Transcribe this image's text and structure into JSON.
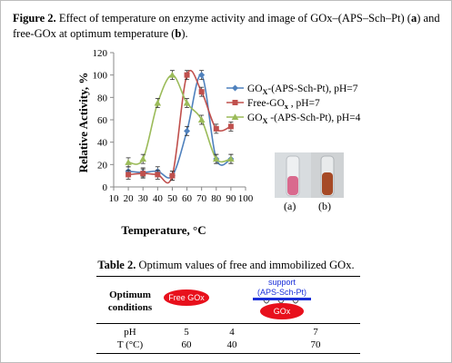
{
  "caption": {
    "label": "Figure 2.",
    "text_a": " Effect of temperature on enzyme activity and image of GOx–(APS–Sch–Pt) (",
    "bold_a": "a",
    "text_b": ") and free-GOx at optimum temperature (",
    "bold_b": "b",
    "text_c": ")."
  },
  "chart_data": {
    "type": "line",
    "xlabel": "Temperature, °C",
    "ylabel": "Relative Activity, %",
    "xlim": [
      10,
      100
    ],
    "ylim": [
      0,
      120
    ],
    "xticks": [
      "10",
      "20",
      "30",
      "40",
      "50",
      "60",
      "70",
      "80",
      "90",
      "100"
    ],
    "yticks": [
      "0",
      "20",
      "40",
      "60",
      "80",
      "100",
      "120"
    ],
    "grid": false,
    "legend": "right",
    "series": [
      {
        "name": "GOx -(APS-Sch-Pt),    pH=7",
        "legend_main": "GO",
        "legend_sub": "X",
        "legend_rest": "-(APS-Sch-Pt),    pH=7",
        "color": "#4f81bd",
        "marker": "diamond",
        "x": [
          20,
          30,
          40,
          50,
          60,
          70,
          80,
          90
        ],
        "y": [
          14,
          13,
          14,
          10,
          50,
          100,
          25,
          25
        ]
      },
      {
        "name": "Free-GOx ,     pH=7",
        "legend_main": "Free-GO",
        "legend_sub": "x",
        "legend_rest": " ,     pH=7",
        "color": "#c0504d",
        "marker": "square",
        "x": [
          20,
          30,
          40,
          50,
          60,
          70,
          80,
          90
        ],
        "y": [
          11,
          12,
          11,
          10,
          100,
          85,
          52,
          54
        ]
      },
      {
        "name": "GOx -(APS-Sch-Pt),    pH=4",
        "legend_main": "GO",
        "legend_sub": "X",
        "legend_rest": " -(APS-Sch-Pt),    pH=4",
        "color": "#9bbb59",
        "marker": "triangle",
        "x": [
          20,
          30,
          40,
          50,
          60,
          70,
          80,
          90
        ],
        "y": [
          22,
          25,
          75,
          100,
          75,
          60,
          25,
          25
        ]
      }
    ]
  },
  "photo_labels": [
    "(a)",
    "(b)"
  ],
  "table": {
    "label": "Table 2.",
    "title": " Optimum values of free and immobilized GOx.",
    "header_line1": "Optimum",
    "header_line2": "conditions",
    "free_gox": "Free GOx",
    "support_line1": "support",
    "support_line2": "(APS-Sch-Pt)",
    "gox": "GOx",
    "rows": [
      {
        "label": "pH",
        "values": [
          "5",
          "4",
          "7"
        ]
      },
      {
        "label": "T (°C)",
        "values": [
          "60",
          "40",
          "70"
        ]
      }
    ]
  }
}
